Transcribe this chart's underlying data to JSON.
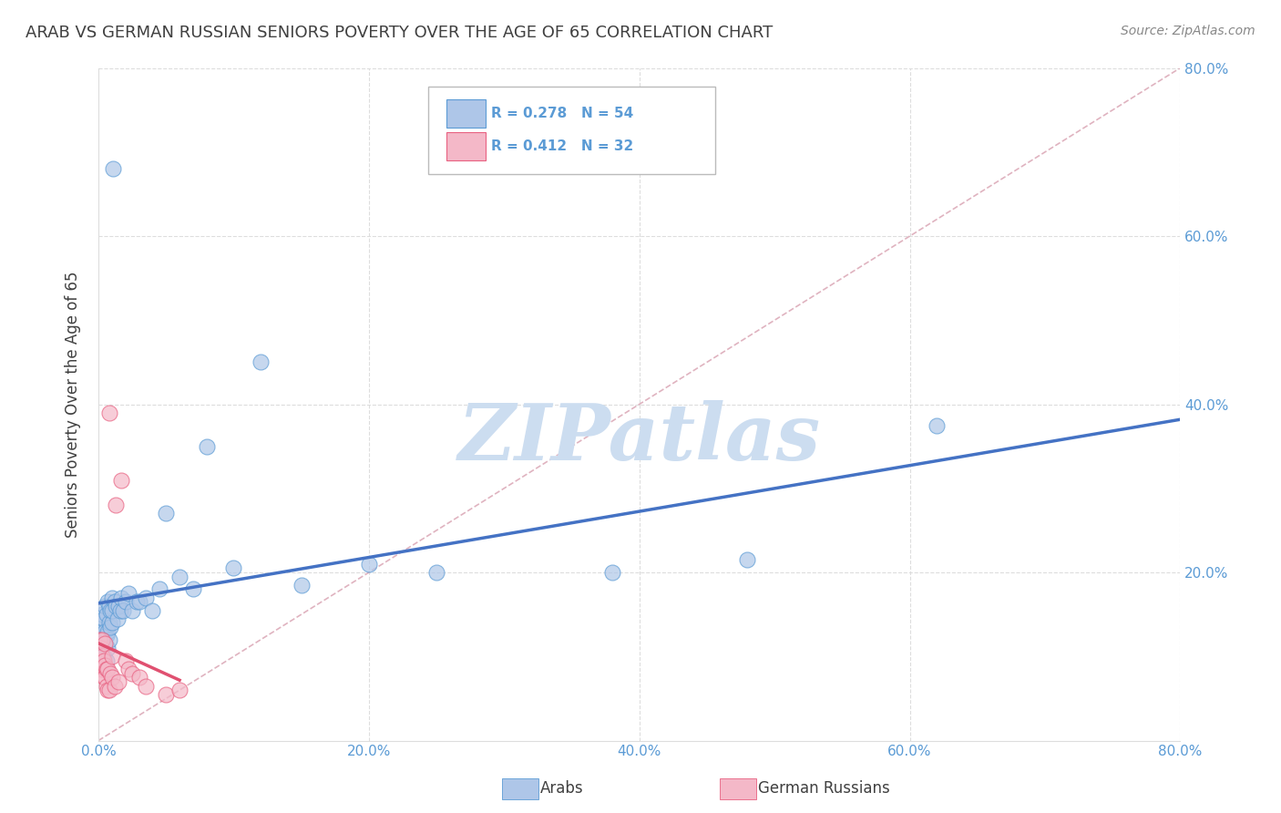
{
  "title": "ARAB VS GERMAN RUSSIAN SENIORS POVERTY OVER THE AGE OF 65 CORRELATION CHART",
  "source": "Source: ZipAtlas.com",
  "ylabel": "Seniors Poverty Over the Age of 65",
  "xlim": [
    0,
    0.8
  ],
  "ylim": [
    0,
    0.8
  ],
  "xticks": [
    0.0,
    0.2,
    0.4,
    0.6,
    0.8
  ],
  "yticks": [
    0.0,
    0.2,
    0.4,
    0.6,
    0.8
  ],
  "xticklabels": [
    "0.0%",
    "20.0%",
    "40.0%",
    "60.0%",
    "80.0%"
  ],
  "yticklabels_right": [
    "",
    "20.0%",
    "40.0%",
    "60.0%",
    "80.0%"
  ],
  "arab_color": "#aec6e8",
  "german_color": "#f4b8c8",
  "arab_edge_color": "#5b9bd5",
  "german_edge_color": "#e86080",
  "arab_line_color": "#4472c4",
  "german_line_color": "#e05070",
  "diagonal_color": "#d8a0b0",
  "title_color": "#404040",
  "axis_tick_color": "#5b9bd5",
  "grid_color": "#dddddd",
  "watermark_color": "#ccddf0",
  "background_color": "#ffffff",
  "arab_x": [
    0.001,
    0.002,
    0.002,
    0.003,
    0.003,
    0.003,
    0.004,
    0.004,
    0.004,
    0.005,
    0.005,
    0.005,
    0.006,
    0.006,
    0.006,
    0.007,
    0.007,
    0.007,
    0.008,
    0.008,
    0.008,
    0.009,
    0.009,
    0.01,
    0.01,
    0.01,
    0.011,
    0.012,
    0.013,
    0.014,
    0.015,
    0.016,
    0.017,
    0.018,
    0.02,
    0.022,
    0.025,
    0.028,
    0.03,
    0.035,
    0.04,
    0.045,
    0.05,
    0.06,
    0.07,
    0.08,
    0.1,
    0.12,
    0.15,
    0.2,
    0.25,
    0.38,
    0.48,
    0.62
  ],
  "arab_y": [
    0.13,
    0.12,
    0.14,
    0.11,
    0.13,
    0.15,
    0.1,
    0.12,
    0.145,
    0.115,
    0.13,
    0.16,
    0.095,
    0.125,
    0.15,
    0.11,
    0.13,
    0.165,
    0.12,
    0.14,
    0.16,
    0.135,
    0.155,
    0.14,
    0.155,
    0.17,
    0.68,
    0.165,
    0.16,
    0.145,
    0.16,
    0.155,
    0.17,
    0.155,
    0.165,
    0.175,
    0.155,
    0.165,
    0.165,
    0.17,
    0.155,
    0.18,
    0.27,
    0.195,
    0.18,
    0.35,
    0.205,
    0.45,
    0.185,
    0.21,
    0.2,
    0.2,
    0.215,
    0.375
  ],
  "german_x": [
    0.001,
    0.001,
    0.002,
    0.002,
    0.003,
    0.003,
    0.003,
    0.004,
    0.004,
    0.005,
    0.005,
    0.005,
    0.006,
    0.006,
    0.007,
    0.007,
    0.008,
    0.008,
    0.009,
    0.01,
    0.01,
    0.012,
    0.013,
    0.015,
    0.017,
    0.02,
    0.022,
    0.025,
    0.03,
    0.035,
    0.05,
    0.06
  ],
  "german_y": [
    0.095,
    0.12,
    0.085,
    0.11,
    0.085,
    0.1,
    0.12,
    0.075,
    0.095,
    0.075,
    0.09,
    0.115,
    0.065,
    0.085,
    0.06,
    0.085,
    0.06,
    0.39,
    0.08,
    0.075,
    0.1,
    0.065,
    0.28,
    0.07,
    0.31,
    0.095,
    0.085,
    0.08,
    0.075,
    0.065,
    0.055,
    0.06
  ]
}
